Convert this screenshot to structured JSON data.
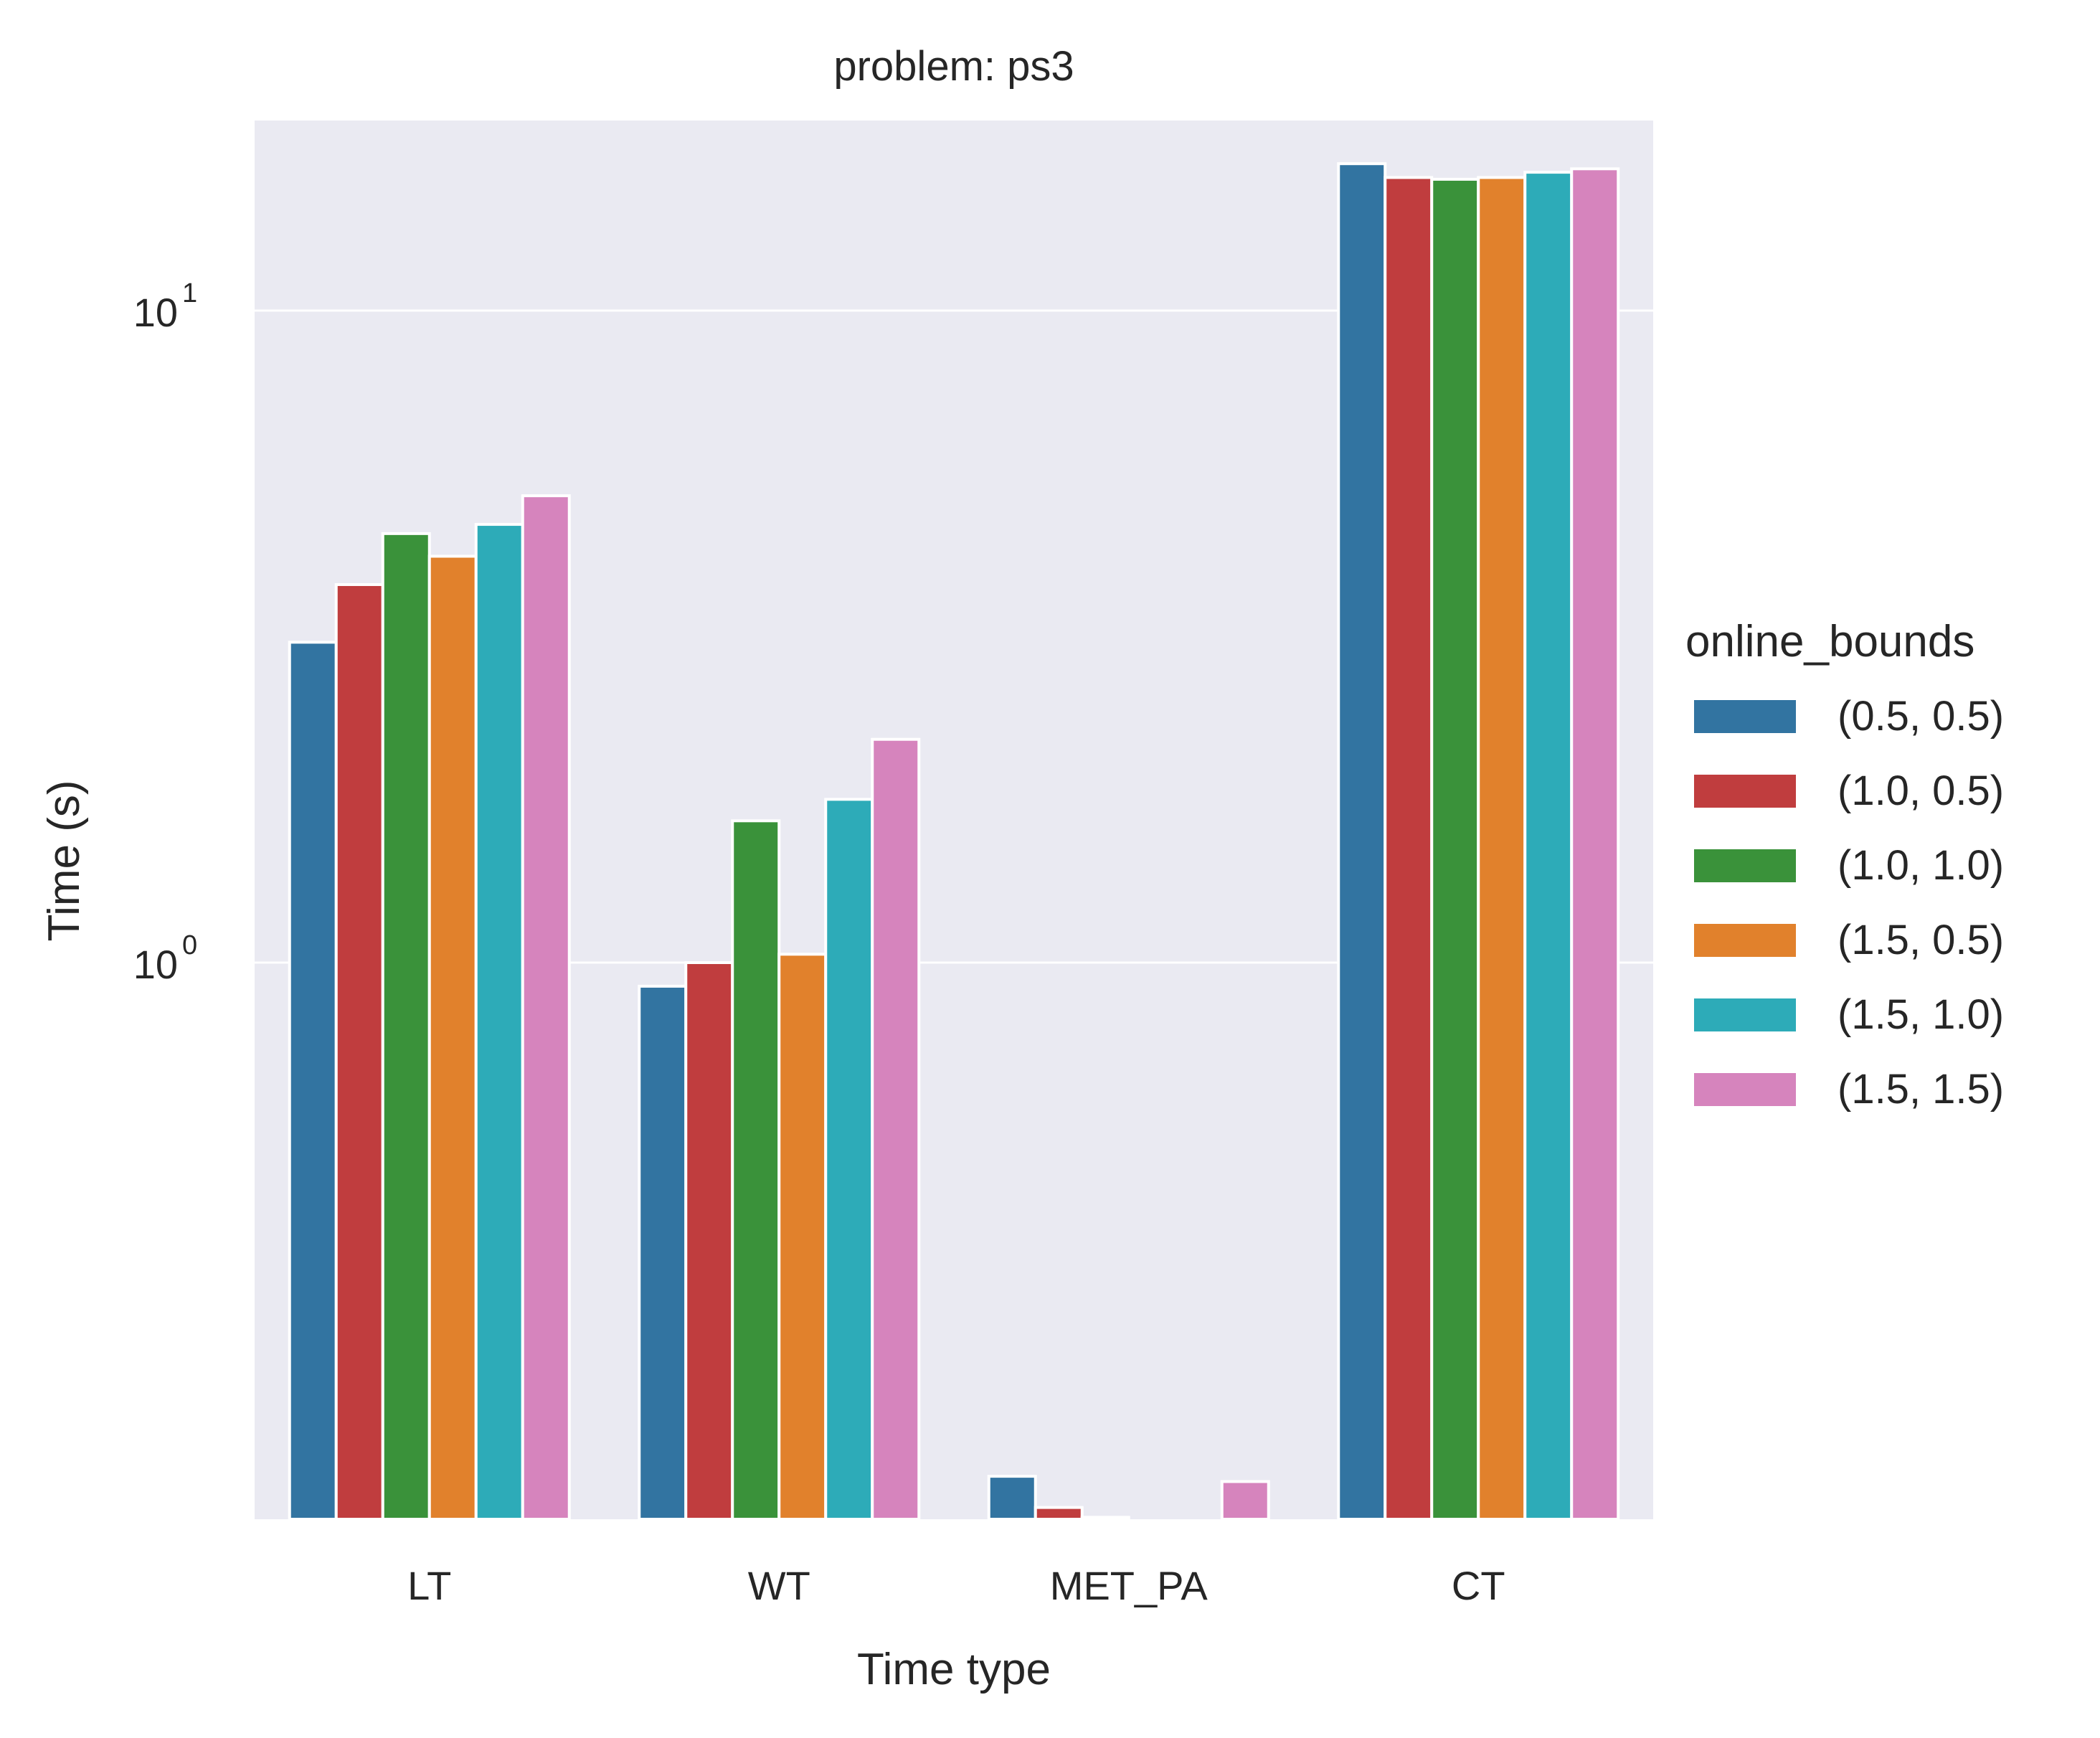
{
  "chart_data": {
    "type": "bar",
    "title": "problem: ps3",
    "xlabel": "Time type",
    "ylabel": "Time (s)",
    "yscale": "log",
    "ylim": [
      0.133,
      20
    ],
    "grid": "horizontal",
    "background": "#EAEAF2",
    "categories": [
      "LT",
      "WT",
      "MET_PA",
      "CT"
    ],
    "y_ticks": [
      {
        "value": 1,
        "base": "10",
        "exp": "0"
      },
      {
        "value": 10,
        "base": "10",
        "exp": "1"
      }
    ],
    "legend": {
      "title": "online_bounds",
      "position": "right"
    },
    "series": [
      {
        "name": "(0.5, 0.5)",
        "color": "#3274A1",
        "values": [
          3.1,
          0.92,
          0.163,
          16.8
        ]
      },
      {
        "name": "(1.0, 0.5)",
        "color": "#C03D3E",
        "values": [
          3.8,
          1.0,
          0.146,
          16.0
        ]
      },
      {
        "name": "(1.0, 1.0)",
        "color": "#3A923A",
        "values": [
          4.55,
          1.65,
          0.141,
          15.9
        ]
      },
      {
        "name": "(1.5, 0.5)",
        "color": "#E1812C",
        "values": [
          4.2,
          1.03,
          0.14,
          16.0
        ]
      },
      {
        "name": "(1.5, 1.0)",
        "color": "#2DABB8",
        "values": [
          4.7,
          1.78,
          0.138,
          16.3
        ]
      },
      {
        "name": "(1.5, 1.5)",
        "color": "#D684BD",
        "values": [
          5.2,
          2.2,
          0.16,
          16.5
        ]
      }
    ]
  }
}
